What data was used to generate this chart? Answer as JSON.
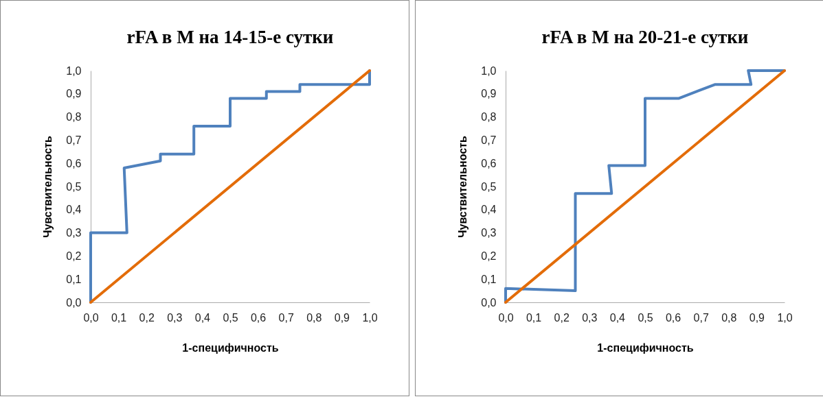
{
  "chart_data": [
    {
      "type": "line",
      "title": "rFA в М на 14-15-е сутки",
      "xlabel": "1-специфичность",
      "ylabel": "Чувствительность",
      "xlim": [
        0,
        1
      ],
      "ylim": [
        0,
        1
      ],
      "xticks": [
        {
          "value": 0,
          "label": "0,0"
        },
        {
          "value": 0.1,
          "label": "0,1"
        },
        {
          "value": 0.2,
          "label": "0,2"
        },
        {
          "value": 0.3,
          "label": "0,3"
        },
        {
          "value": 0.4,
          "label": "0,4"
        },
        {
          "value": 0.5,
          "label": "0,5"
        },
        {
          "value": 0.6,
          "label": "0,6"
        },
        {
          "value": 0.7,
          "label": "0,7"
        },
        {
          "value": 0.8,
          "label": "0,8"
        },
        {
          "value": 0.9,
          "label": "0,9"
        },
        {
          "value": 1,
          "label": "1,0"
        }
      ],
      "yticks": [
        {
          "value": 0,
          "label": "0,0"
        },
        {
          "value": 0.1,
          "label": "0,1"
        },
        {
          "value": 0.2,
          "label": "0,2"
        },
        {
          "value": 0.3,
          "label": "0,3"
        },
        {
          "value": 0.4,
          "label": "0,4"
        },
        {
          "value": 0.5,
          "label": "0,5"
        },
        {
          "value": 0.6,
          "label": "0,6"
        },
        {
          "value": 0.7,
          "label": "0,7"
        },
        {
          "value": 0.8,
          "label": "0,8"
        },
        {
          "value": 0.9,
          "label": "0,9"
        },
        {
          "value": 1,
          "label": "1,0"
        }
      ],
      "grid": false,
      "legend": false,
      "marker": "none",
      "series": [
        {
          "color": "#4f81bd",
          "x": [
            0,
            0,
            0.13,
            0.12,
            0.25,
            0.25,
            0.37,
            0.37,
            0.5,
            0.5,
            0.63,
            0.63,
            0.75,
            0.75,
            1,
            1
          ],
          "values": [
            0,
            0.3,
            0.3,
            0.58,
            0.61,
            0.64,
            0.64,
            0.76,
            0.76,
            0.88,
            0.88,
            0.91,
            0.91,
            0.94,
            0.94,
            1
          ]
        },
        {
          "color": "#e36c09",
          "x": [
            0,
            1
          ],
          "values": [
            0,
            1
          ]
        }
      ]
    },
    {
      "type": "line",
      "title": "rFA в М на 20-21-е сутки",
      "xlabel": "1-специфичность",
      "ylabel": "Чувствительность",
      "xlim": [
        0,
        1
      ],
      "ylim": [
        0,
        1
      ],
      "xticks": [
        {
          "value": 0,
          "label": "0,0"
        },
        {
          "value": 0.1,
          "label": "0,1"
        },
        {
          "value": 0.2,
          "label": "0,2"
        },
        {
          "value": 0.3,
          "label": "0,3"
        },
        {
          "value": 0.4,
          "label": "0,4"
        },
        {
          "value": 0.5,
          "label": "0,5"
        },
        {
          "value": 0.6,
          "label": "0,6"
        },
        {
          "value": 0.7,
          "label": "0,7"
        },
        {
          "value": 0.8,
          "label": "0,8"
        },
        {
          "value": 0.9,
          "label": "0,9"
        },
        {
          "value": 1,
          "label": "1,0"
        }
      ],
      "yticks": [
        {
          "value": 0,
          "label": "0,0"
        },
        {
          "value": 0.1,
          "label": "0,1"
        },
        {
          "value": 0.2,
          "label": "0,2"
        },
        {
          "value": 0.3,
          "label": "0,3"
        },
        {
          "value": 0.4,
          "label": "0,4"
        },
        {
          "value": 0.5,
          "label": "0,5"
        },
        {
          "value": 0.6,
          "label": "0,6"
        },
        {
          "value": 0.7,
          "label": "0,7"
        },
        {
          "value": 0.8,
          "label": "0,8"
        },
        {
          "value": 0.9,
          "label": "0,9"
        },
        {
          "value": 1,
          "label": "1,0"
        }
      ],
      "grid": false,
      "legend": false,
      "marker": "none",
      "series": [
        {
          "color": "#4f81bd",
          "x": [
            0,
            0,
            0.25,
            0.25,
            0.38,
            0.37,
            0.5,
            0.5,
            0.62,
            0.75,
            0.88,
            0.87,
            1
          ],
          "values": [
            0,
            0.06,
            0.05,
            0.47,
            0.47,
            0.59,
            0.59,
            0.88,
            0.88,
            0.94,
            0.94,
            1,
            1
          ]
        },
        {
          "color": "#e36c09",
          "x": [
            0,
            1
          ],
          "values": [
            0,
            1
          ]
        }
      ]
    }
  ]
}
